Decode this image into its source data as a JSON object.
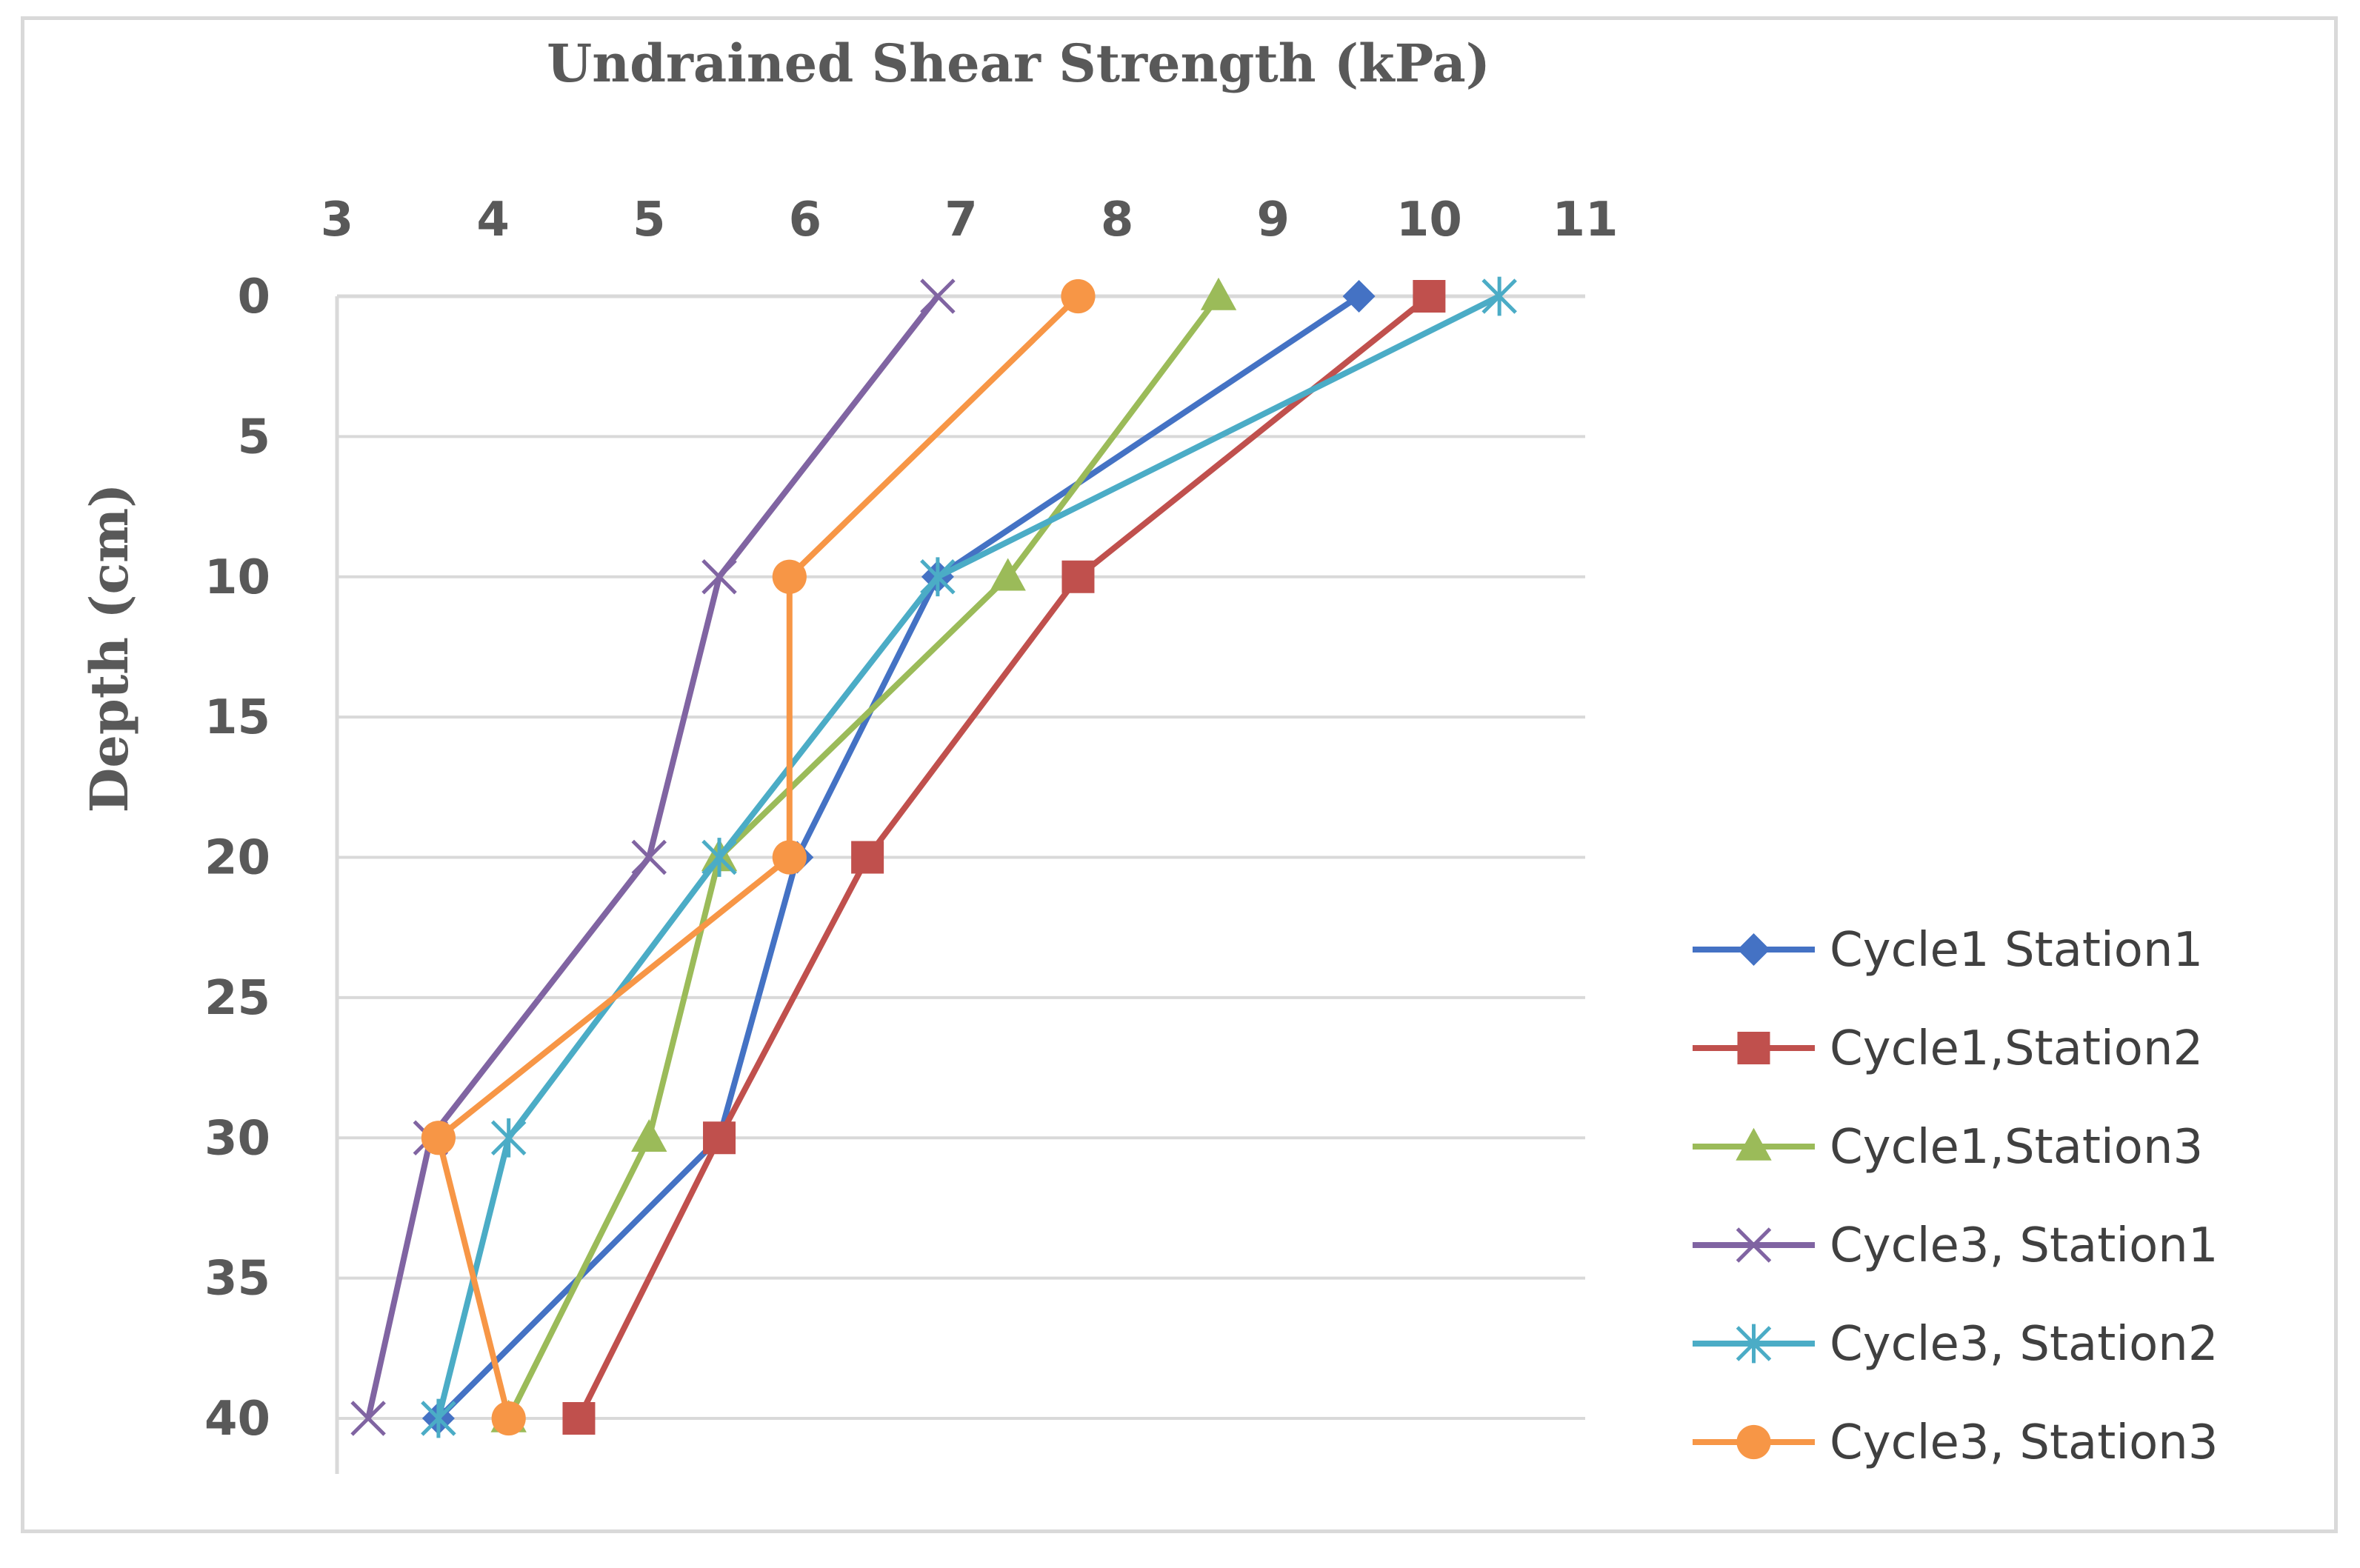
{
  "chart_data": {
    "type": "line",
    "title": "Undrained Shear Strength (kPa)",
    "xlabel": "Undrained Shear Strength (kPa)",
    "ylabel": "Depth (cm)",
    "xlim": [
      3,
      11
    ],
    "ylim": [
      0,
      40
    ],
    "y_reversed": true,
    "x_axis_position": "top",
    "x_ticks": [
      "3",
      "4",
      "5",
      "6",
      "7",
      "8",
      "9",
      "10",
      "11"
    ],
    "y_ticks": [
      "0",
      "5",
      "10",
      "15",
      "20",
      "25",
      "30",
      "35",
      "40"
    ],
    "grid": "horizontal",
    "legend_position": "right-bottom",
    "depths": [
      0,
      10,
      20,
      30,
      40
    ],
    "series": [
      {
        "name": "Cycle1 Station1",
        "color": "#4472c4",
        "marker": "diamond",
        "values": [
          9.55,
          6.85,
          5.95,
          5.45,
          3.65
        ]
      },
      {
        "name": "Cycle1,Station2",
        "color": "#c0504d",
        "marker": "square",
        "values": [
          10.0,
          7.75,
          6.4,
          5.45,
          4.55
        ]
      },
      {
        "name": "Cycle1,Station3",
        "color": "#9bbb59",
        "marker": "triangle",
        "values": [
          8.65,
          7.3,
          5.45,
          5.0,
          4.1
        ]
      },
      {
        "name": "Cycle3, Station1",
        "color": "#8064a2",
        "marker": "x",
        "values": [
          6.85,
          5.45,
          5.0,
          3.6,
          3.2
        ]
      },
      {
        "name": "Cycle3, Station2",
        "color": "#4bacc6",
        "marker": "star",
        "values": [
          10.45,
          6.85,
          5.45,
          4.1,
          3.65
        ]
      },
      {
        "name": "Cycle3, Station3",
        "color": "#f79646",
        "marker": "circle",
        "values": [
          7.75,
          5.9,
          5.9,
          3.65,
          4.1
        ]
      }
    ]
  }
}
